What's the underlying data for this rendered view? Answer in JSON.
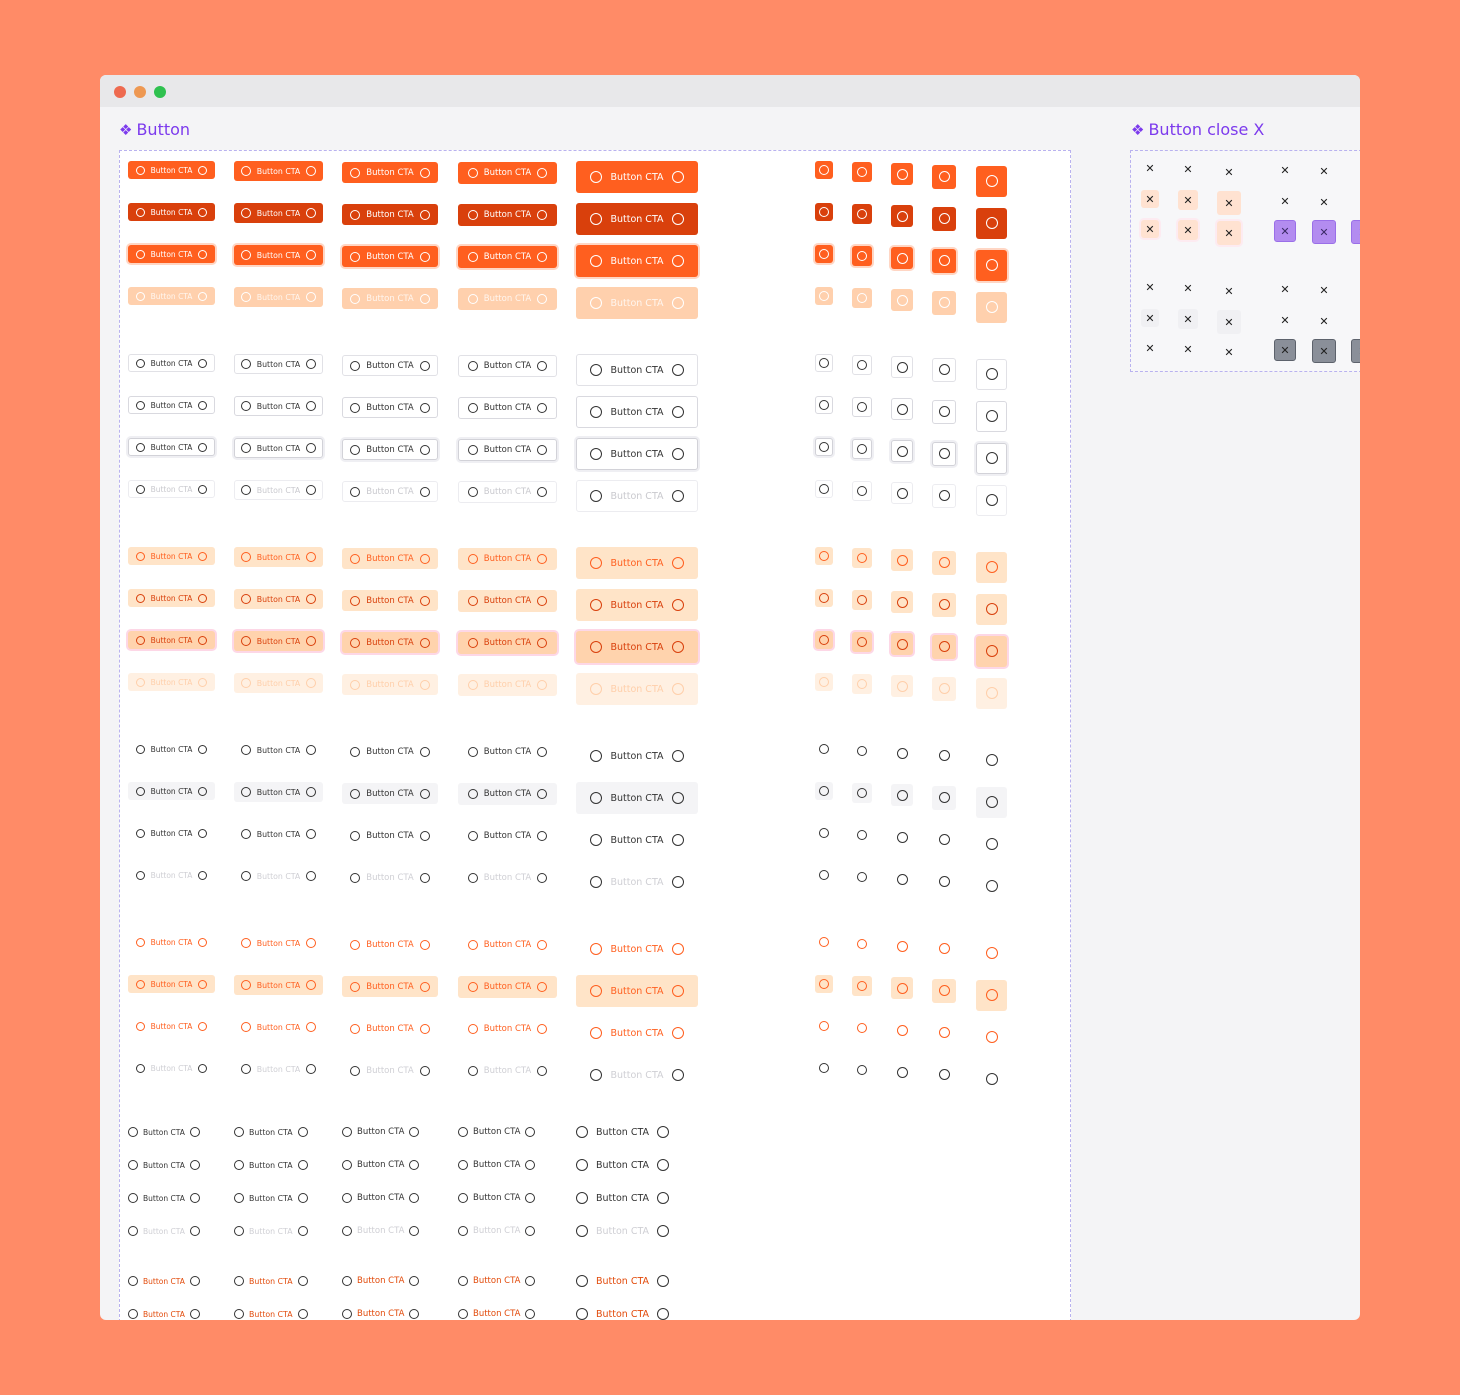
{
  "frames": {
    "button": {
      "icon": "component-icon",
      "title": "Button"
    },
    "close": {
      "icon": "component-icon",
      "title": "Button close X"
    }
  },
  "buttons": {
    "label": "Button CTA",
    "close_glyph": "✕",
    "sizes": [
      "xs",
      "sm",
      "md",
      "lg",
      "xl"
    ],
    "states": [
      "default",
      "hover",
      "focus",
      "disabled"
    ],
    "variants": [
      "primary",
      "secondary",
      "soft",
      "ghost",
      "link-orange",
      "link-gray",
      "link-orange-text"
    ]
  },
  "colors": {
    "background": "#ff8b67",
    "primary": "#ff5f1f",
    "primary_hover": "#d9400c",
    "primary_disabled": "#ffd0ad",
    "soft": "#ffe4c8",
    "accent_purple": "#7c3aed",
    "close_purple": "#b38cf0",
    "close_gray": "#8a8f99"
  }
}
